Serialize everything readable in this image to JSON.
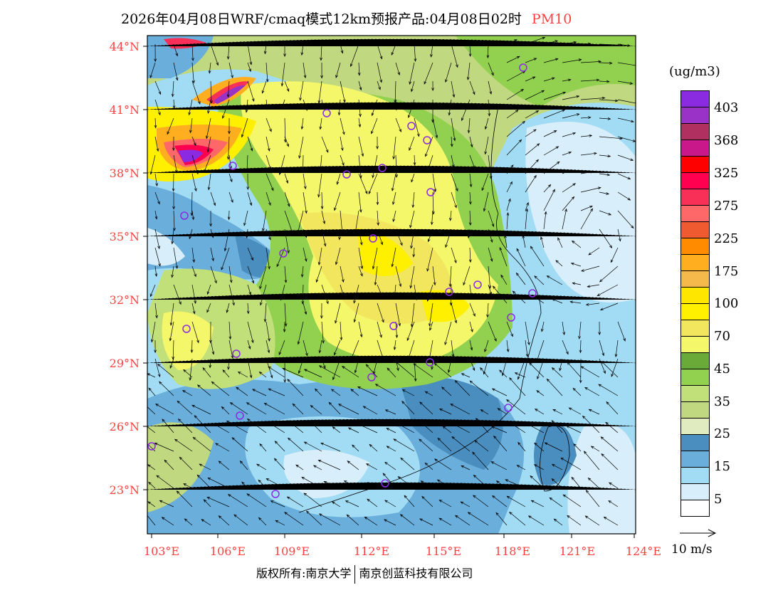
{
  "title": {
    "main": "2026年04月08日WRF/cmaq模式12km预报产品:04月08日02时",
    "pollutant": "PM10"
  },
  "axes": {
    "lat_labels": [
      "44°N",
      "41°N",
      "38°N",
      "35°N",
      "32°N",
      "29°N",
      "26°N",
      "23°N"
    ],
    "lon_labels": [
      "103°E",
      "106°E",
      "109°E",
      "112°E",
      "115°E",
      "118°E",
      "121°E",
      "124°E"
    ]
  },
  "legend": {
    "unit": "(ug/m3)",
    "labels": [
      "403",
      "368",
      "325",
      "275",
      "225",
      "175",
      "100",
      "70",
      "45",
      "35",
      "25",
      "15",
      "5"
    ],
    "colors": [
      "#8a2be2",
      "#9a32c8",
      "#b03060",
      "#c8188a",
      "#ff0000",
      "#ff0050",
      "#f83058",
      "#ff6868",
      "#f05a30",
      "#ff8c00",
      "#ffae20",
      "#f5b84a",
      "#ffe600",
      "#fff000",
      "#f2e65e",
      "#f5f76a",
      "#6aaa38",
      "#92d050",
      "#c2e07a",
      "#c0d880",
      "#e0ecc0",
      "#4a8ec0",
      "#6aaedc",
      "#a2dcf4",
      "#d8eefa",
      "#ffffff"
    ]
  },
  "wind_reference": {
    "label": "10 m/s"
  },
  "copyright": {
    "left": "版权所有:南京大学",
    "right": "南京创蓝科技有限公司"
  },
  "colors": {
    "axis_label": "#ff4040",
    "city_marker": "#8a2be2"
  }
}
